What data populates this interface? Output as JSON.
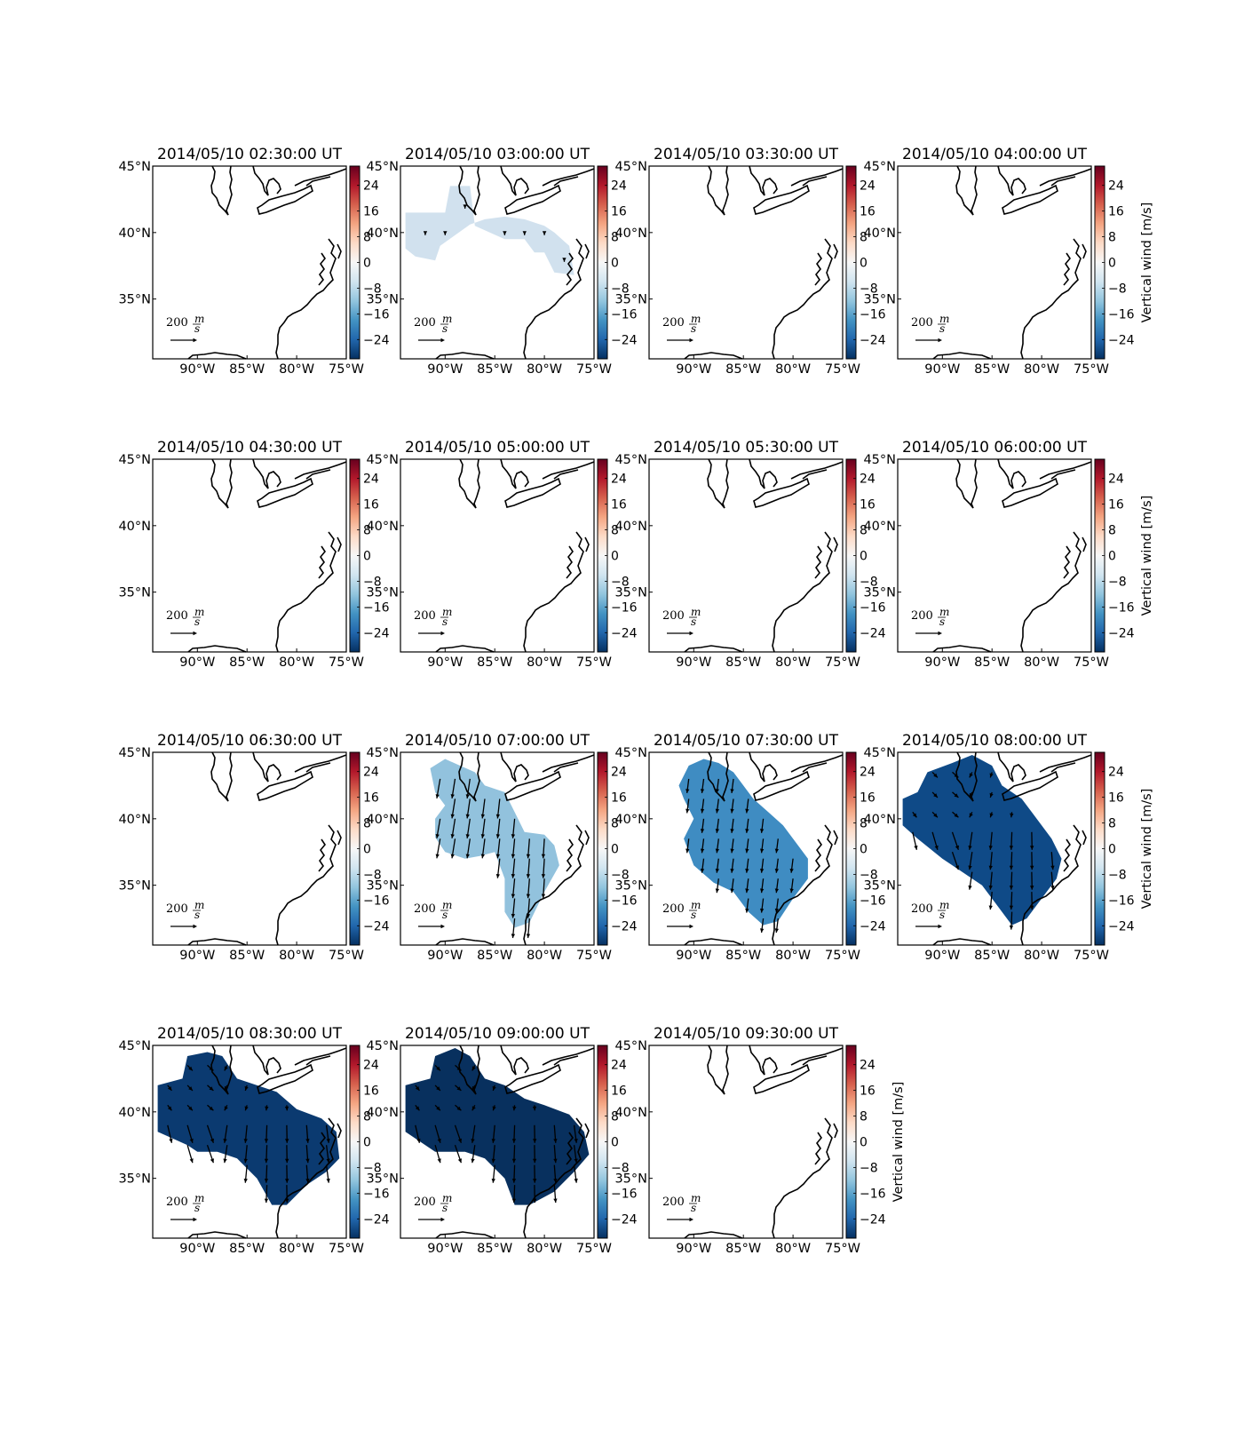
{
  "figure": {
    "colorbar_label": "Vertical wind [m/s]",
    "colorbar_ticks": [
      "24",
      "16",
      "8",
      "0",
      "−8",
      "−16",
      "−24"
    ],
    "colorbar_tick_values": [
      24,
      16,
      8,
      0,
      -8,
      -16,
      -24
    ],
    "colorbar_range": [
      -30,
      30
    ],
    "x_tick_labels": [
      "90°W",
      "85°W",
      "80°W",
      "75°W"
    ],
    "y_tick_labels": [
      "45°N",
      "40°N",
      "35°N"
    ],
    "reference_arrow": {
      "value": "200",
      "unit_num": "m",
      "unit_den": "s"
    },
    "colormap": [
      "#67001f",
      "#b2182b",
      "#d6604d",
      "#f4a582",
      "#fddbc7",
      "#f7f7f7",
      "#d1e5f0",
      "#92c5de",
      "#4393c3",
      "#2166ac",
      "#053061"
    ],
    "panels": [
      {
        "title": "2014/05/10 02:30:00 UT",
        "fill": "none"
      },
      {
        "title": "2014/05/10 03:00:00 UT",
        "fill": "#d1e1ee"
      },
      {
        "title": "2014/05/10 03:30:00 UT",
        "fill": "none"
      },
      {
        "title": "2014/05/10 04:00:00 UT",
        "fill": "none"
      },
      {
        "title": "2014/05/10 04:30:00 UT",
        "fill": "none"
      },
      {
        "title": "2014/05/10 05:00:00 UT",
        "fill": "none"
      },
      {
        "title": "2014/05/10 05:30:00 UT",
        "fill": "none"
      },
      {
        "title": "2014/05/10 06:00:00 UT",
        "fill": "none"
      },
      {
        "title": "2014/05/10 06:30:00 UT",
        "fill": "none"
      },
      {
        "title": "2014/05/10 07:00:00 UT",
        "fill": "#92c2dd"
      },
      {
        "title": "2014/05/10 07:30:00 UT",
        "fill": "#3f8cc2"
      },
      {
        "title": "2014/05/10 08:00:00 UT",
        "fill": "#0f4a87"
      },
      {
        "title": "2014/05/10 08:30:00 UT",
        "fill": "#0b3a70"
      },
      {
        "title": "2014/05/10 09:00:00 UT",
        "fill": "#08305e"
      },
      {
        "title": "2014/05/10 09:30:00 UT",
        "fill": "none"
      }
    ]
  }
}
